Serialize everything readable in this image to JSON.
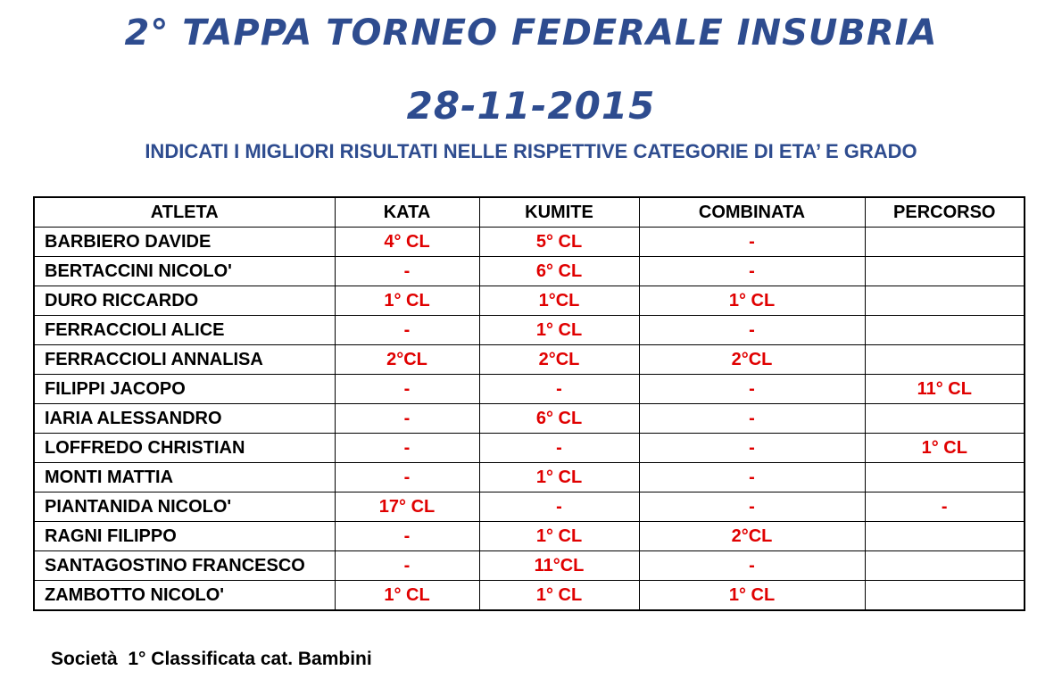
{
  "header": {
    "title": "2° TAPPA TORNEO FEDERALE INSUBRIA",
    "date": "28-11-2015",
    "subtitle": "INDICATI I MIGLIORI RISULTATI NELLE RISPETTIVE CATEGORIE DI ETA’ E GRADO"
  },
  "table": {
    "columns": [
      "ATLETA",
      "KATA",
      "KUMITE",
      "COMBINATA",
      "PERCORSO"
    ],
    "rows": [
      [
        "BARBIERO DAVIDE",
        "4° CL",
        "5° CL",
        "-",
        ""
      ],
      [
        "BERTACCINI NICOLO'",
        "-",
        "6° CL",
        "-",
        ""
      ],
      [
        "DURO RICCARDO",
        "1° CL",
        "1°CL",
        "1° CL",
        ""
      ],
      [
        "FERRACCIOLI ALICE",
        "-",
        "1° CL",
        "-",
        ""
      ],
      [
        "FERRACCIOLI ANNALISA",
        "2°CL",
        "2°CL",
        "2°CL",
        ""
      ],
      [
        "FILIPPI JACOPO",
        "-",
        "-",
        "-",
        "11° CL"
      ],
      [
        "IARIA ALESSANDRO",
        "-",
        "6° CL",
        "-",
        ""
      ],
      [
        "LOFFREDO CHRISTIAN",
        "-",
        "-",
        "-",
        "1° CL"
      ],
      [
        "MONTI MATTIA",
        "-",
        "1° CL",
        "-",
        ""
      ],
      [
        "PIANTANIDA NICOLO'",
        "17° CL",
        "-",
        "-",
        "-"
      ],
      [
        "RAGNI FILIPPO",
        "-",
        "1° CL",
        "2°CL",
        ""
      ],
      [
        "SANTAGOSTINO FRANCESCO",
        "-",
        "11°CL",
        "-",
        ""
      ],
      [
        "ZAMBOTTO NICOLO'",
        "1° CL",
        "1° CL",
        "1° CL",
        ""
      ]
    ]
  },
  "footer": {
    "text": "Società  1° Classificata cat. Bambini"
  },
  "colors": {
    "title": "#2e4c8f",
    "result": "#e00000",
    "text": "#000000"
  }
}
